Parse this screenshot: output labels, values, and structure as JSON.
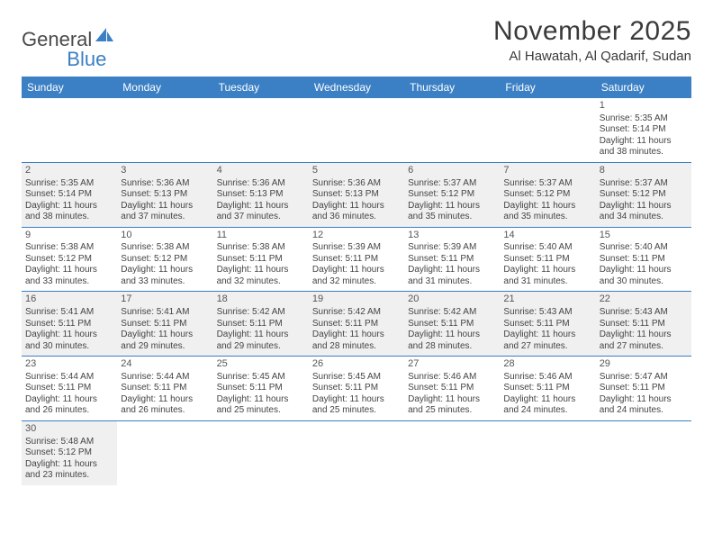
{
  "logo": {
    "text1": "General",
    "text2": "Blue",
    "sail_color": "#3b7fc4"
  },
  "title": "November 2025",
  "location": "Al Hawatah, Al Qadarif, Sudan",
  "header_bg": "#3b7fc4",
  "border_color": "#3b7fc4",
  "shade_bg": "#f0f0f0",
  "text_color": "#444444",
  "dow": [
    "Sunday",
    "Monday",
    "Tuesday",
    "Wednesday",
    "Thursday",
    "Friday",
    "Saturday"
  ],
  "first_weekday": 6,
  "days_in_month": 30,
  "days": {
    "1": {
      "sunrise": "5:35 AM",
      "sunset": "5:14 PM",
      "dl": "11 hours and 38 minutes."
    },
    "2": {
      "sunrise": "5:35 AM",
      "sunset": "5:14 PM",
      "dl": "11 hours and 38 minutes."
    },
    "3": {
      "sunrise": "5:36 AM",
      "sunset": "5:13 PM",
      "dl": "11 hours and 37 minutes."
    },
    "4": {
      "sunrise": "5:36 AM",
      "sunset": "5:13 PM",
      "dl": "11 hours and 37 minutes."
    },
    "5": {
      "sunrise": "5:36 AM",
      "sunset": "5:13 PM",
      "dl": "11 hours and 36 minutes."
    },
    "6": {
      "sunrise": "5:37 AM",
      "sunset": "5:12 PM",
      "dl": "11 hours and 35 minutes."
    },
    "7": {
      "sunrise": "5:37 AM",
      "sunset": "5:12 PM",
      "dl": "11 hours and 35 minutes."
    },
    "8": {
      "sunrise": "5:37 AM",
      "sunset": "5:12 PM",
      "dl": "11 hours and 34 minutes."
    },
    "9": {
      "sunrise": "5:38 AM",
      "sunset": "5:12 PM",
      "dl": "11 hours and 33 minutes."
    },
    "10": {
      "sunrise": "5:38 AM",
      "sunset": "5:12 PM",
      "dl": "11 hours and 33 minutes."
    },
    "11": {
      "sunrise": "5:38 AM",
      "sunset": "5:11 PM",
      "dl": "11 hours and 32 minutes."
    },
    "12": {
      "sunrise": "5:39 AM",
      "sunset": "5:11 PM",
      "dl": "11 hours and 32 minutes."
    },
    "13": {
      "sunrise": "5:39 AM",
      "sunset": "5:11 PM",
      "dl": "11 hours and 31 minutes."
    },
    "14": {
      "sunrise": "5:40 AM",
      "sunset": "5:11 PM",
      "dl": "11 hours and 31 minutes."
    },
    "15": {
      "sunrise": "5:40 AM",
      "sunset": "5:11 PM",
      "dl": "11 hours and 30 minutes."
    },
    "16": {
      "sunrise": "5:41 AM",
      "sunset": "5:11 PM",
      "dl": "11 hours and 30 minutes."
    },
    "17": {
      "sunrise": "5:41 AM",
      "sunset": "5:11 PM",
      "dl": "11 hours and 29 minutes."
    },
    "18": {
      "sunrise": "5:42 AM",
      "sunset": "5:11 PM",
      "dl": "11 hours and 29 minutes."
    },
    "19": {
      "sunrise": "5:42 AM",
      "sunset": "5:11 PM",
      "dl": "11 hours and 28 minutes."
    },
    "20": {
      "sunrise": "5:42 AM",
      "sunset": "5:11 PM",
      "dl": "11 hours and 28 minutes."
    },
    "21": {
      "sunrise": "5:43 AM",
      "sunset": "5:11 PM",
      "dl": "11 hours and 27 minutes."
    },
    "22": {
      "sunrise": "5:43 AM",
      "sunset": "5:11 PM",
      "dl": "11 hours and 27 minutes."
    },
    "23": {
      "sunrise": "5:44 AM",
      "sunset": "5:11 PM",
      "dl": "11 hours and 26 minutes."
    },
    "24": {
      "sunrise": "5:44 AM",
      "sunset": "5:11 PM",
      "dl": "11 hours and 26 minutes."
    },
    "25": {
      "sunrise": "5:45 AM",
      "sunset": "5:11 PM",
      "dl": "11 hours and 25 minutes."
    },
    "26": {
      "sunrise": "5:45 AM",
      "sunset": "5:11 PM",
      "dl": "11 hours and 25 minutes."
    },
    "27": {
      "sunrise": "5:46 AM",
      "sunset": "5:11 PM",
      "dl": "11 hours and 25 minutes."
    },
    "28": {
      "sunrise": "5:46 AM",
      "sunset": "5:11 PM",
      "dl": "11 hours and 24 minutes."
    },
    "29": {
      "sunrise": "5:47 AM",
      "sunset": "5:11 PM",
      "dl": "11 hours and 24 minutes."
    },
    "30": {
      "sunrise": "5:48 AM",
      "sunset": "5:12 PM",
      "dl": "11 hours and 23 minutes."
    }
  },
  "labels": {
    "sunrise": "Sunrise:",
    "sunset": "Sunset:",
    "daylight": "Daylight:"
  }
}
